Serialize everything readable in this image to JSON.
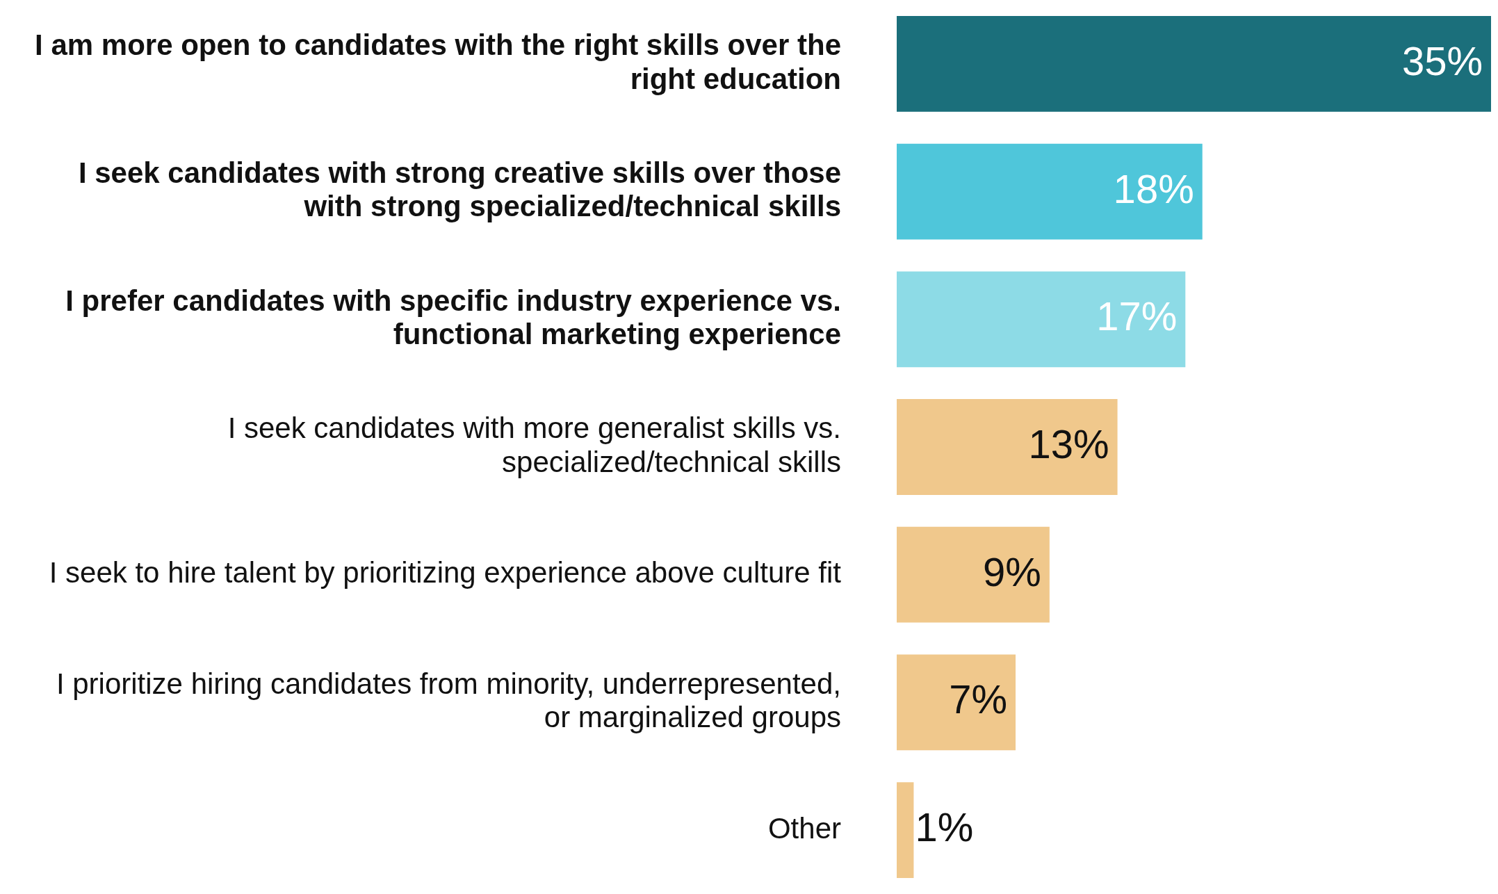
{
  "chart_data": {
    "type": "bar",
    "orientation": "horizontal",
    "grid": false,
    "legend": false,
    "categories": [
      "I am more open to candidates with the right skills over the right education",
      "I seek candidates with strong creative skills over those with strong specialized/technical skills",
      "I prefer candidates with specific industry experience vs. functional marketing experience",
      "I seek candidates with more generalist skills vs. specialized/technical skills",
      "I seek to hire talent by prioritizing experience above culture fit",
      "I prioritize hiring candidates from minority, underrepresented, or marginalized groups",
      "Other"
    ],
    "values": [
      35,
      18,
      17,
      13,
      9,
      7,
      1
    ],
    "value_labels": [
      "35%",
      "18%",
      "17%",
      "13%",
      "9%",
      "7%",
      "1%"
    ],
    "colors": [
      "#1b6f7b",
      "#4fc6da",
      "#8ddbe6",
      "#f0c88c",
      "#f0c88c",
      "#f0c88c",
      "#f0c88c"
    ],
    "tick_labels": "y"
  }
}
